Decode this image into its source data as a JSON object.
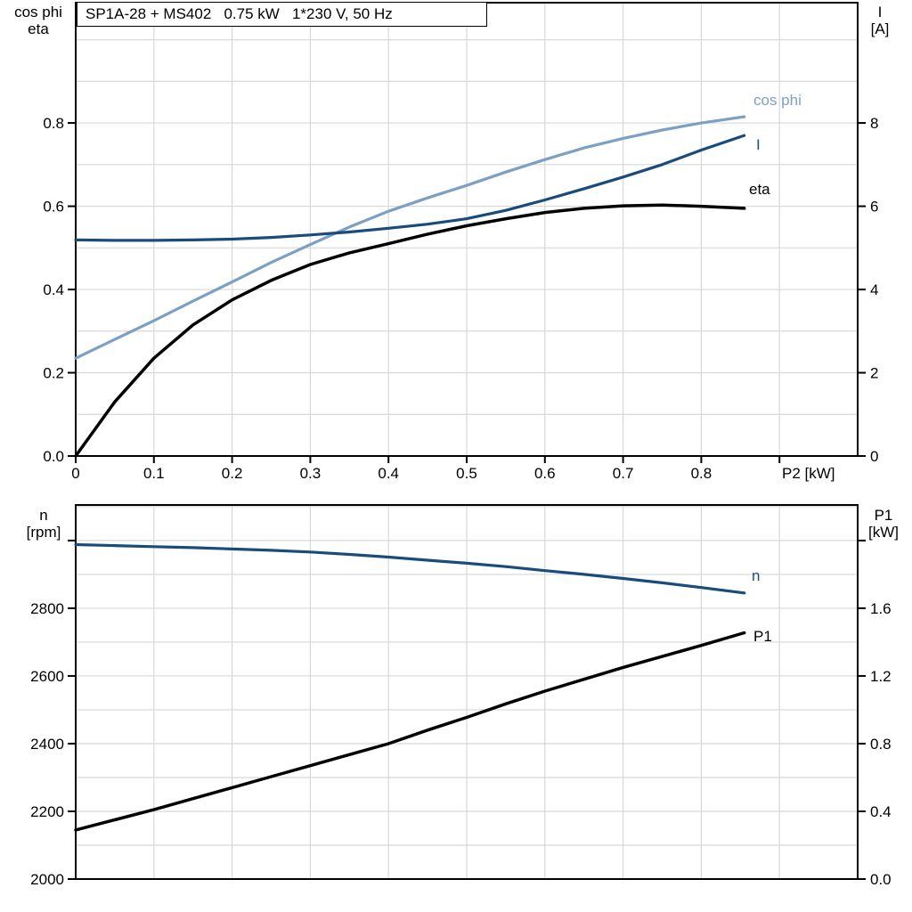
{
  "header": {
    "title_box": "SP1A-28 + MS402   0.75 kW   1*230 V, 50 Hz"
  },
  "colors": {
    "cos_phi": "#7CA0C4",
    "current": "#1A4B7D",
    "eta": "#000000",
    "n": "#1A4B7D",
    "p1": "#000000",
    "grid": "#D8D8D8",
    "axis": "#000000"
  },
  "axis_titles": {
    "top_left_line1": "cos phi",
    "top_left_line2": "eta",
    "top_right_line1": "I",
    "top_right_line2": "[A]",
    "bottom_left_line1": "n",
    "bottom_left_line2": "[rpm]",
    "bottom_right_line1": "P1",
    "bottom_right_line2": "[kW]",
    "x_label": "P2 [kW]"
  },
  "legends": {
    "cos_phi": "cos phi",
    "current": "I",
    "eta": "eta",
    "n": "n",
    "p1": "P1"
  },
  "chart_data": [
    {
      "id": "top",
      "type": "line",
      "title": "SP1A-28 + MS402   0.75 kW   1*230 V, 50 Hz",
      "x_axis": {
        "label": "P2 [kW]",
        "min": 0,
        "max": 1.0,
        "grid_step": 0.1,
        "ticks": [
          {
            "v": 0,
            "label": "0"
          },
          {
            "v": 0.1,
            "label": "0.1"
          },
          {
            "v": 0.2,
            "label": "0.2"
          },
          {
            "v": 0.3,
            "label": "0.3"
          },
          {
            "v": 0.4,
            "label": "0.4"
          },
          {
            "v": 0.5,
            "label": "0.5"
          },
          {
            "v": 0.6,
            "label": "0.6"
          },
          {
            "v": 0.7,
            "label": "0.7"
          },
          {
            "v": 0.8,
            "label": "0.8"
          },
          {
            "v": 0.9,
            "label": ""
          }
        ]
      },
      "left_axis": {
        "label": "cos phi / eta",
        "min": 0,
        "max": 1.089,
        "grid_step": 0.1,
        "ticks": [
          {
            "v": 0.0,
            "label": "0.0"
          },
          {
            "v": 0.2,
            "label": "0.2"
          },
          {
            "v": 0.4,
            "label": "0.4"
          },
          {
            "v": 0.6,
            "label": "0.6"
          },
          {
            "v": 0.8,
            "label": "0.8"
          }
        ]
      },
      "right_axis": {
        "label": "I [A]",
        "min": 0,
        "max": 10.89,
        "ticks": [
          {
            "v": 0,
            "label": "0"
          },
          {
            "v": 2,
            "label": "2"
          },
          {
            "v": 4,
            "label": "4"
          },
          {
            "v": 6,
            "label": "6"
          },
          {
            "v": 8,
            "label": "8"
          }
        ]
      },
      "x": [
        0,
        0.05,
        0.1,
        0.15,
        0.2,
        0.25,
        0.3,
        0.35,
        0.4,
        0.45,
        0.5,
        0.55,
        0.6,
        0.65,
        0.7,
        0.75,
        0.8,
        0.855
      ],
      "series": [
        {
          "name": "cos phi",
          "axis": "left",
          "color": "cos_phi",
          "width": 3.2,
          "values": [
            0.235,
            0.28,
            0.325,
            0.372,
            0.418,
            0.465,
            0.508,
            0.55,
            0.588,
            0.62,
            0.65,
            0.682,
            0.712,
            0.74,
            0.763,
            0.783,
            0.8,
            0.815
          ]
        },
        {
          "name": "I",
          "axis": "right",
          "color": "current",
          "width": 3.2,
          "values": [
            5.19,
            5.18,
            5.18,
            5.19,
            5.21,
            5.25,
            5.31,
            5.38,
            5.47,
            5.57,
            5.7,
            5.9,
            6.15,
            6.42,
            6.7,
            7.0,
            7.35,
            7.7
          ]
        },
        {
          "name": "eta",
          "axis": "left",
          "color": "eta",
          "width": 3.5,
          "values": [
            0.0,
            0.13,
            0.235,
            0.315,
            0.375,
            0.422,
            0.46,
            0.488,
            0.51,
            0.533,
            0.553,
            0.57,
            0.585,
            0.595,
            0.601,
            0.603,
            0.6,
            0.595
          ]
        }
      ]
    },
    {
      "id": "bottom",
      "type": "line",
      "x_axis": {
        "label": "",
        "min": 0,
        "max": 1.0,
        "grid_step": 0.1,
        "ticks": []
      },
      "left_axis": {
        "label": "n [rpm]",
        "min": 2000,
        "max": 3105,
        "grid_step": 100,
        "ticks": [
          {
            "v": 2000,
            "label": "2000"
          },
          {
            "v": 2200,
            "label": "2200"
          },
          {
            "v": 2400,
            "label": "2400"
          },
          {
            "v": 2600,
            "label": "2600"
          },
          {
            "v": 2800,
            "label": "2800"
          },
          {
            "v": 3000,
            "label": ""
          }
        ]
      },
      "right_axis": {
        "label": "P1 [kW]",
        "min": 0,
        "max": 2.21,
        "ticks": [
          {
            "v": 0.0,
            "label": "0.0"
          },
          {
            "v": 0.4,
            "label": "0.4"
          },
          {
            "v": 0.8,
            "label": "0.8"
          },
          {
            "v": 1.2,
            "label": "1.2"
          },
          {
            "v": 1.6,
            "label": "1.6"
          },
          {
            "v": 2.0,
            "label": ""
          }
        ]
      },
      "x": [
        0,
        0.05,
        0.1,
        0.15,
        0.2,
        0.25,
        0.3,
        0.35,
        0.4,
        0.45,
        0.5,
        0.55,
        0.6,
        0.65,
        0.7,
        0.75,
        0.8,
        0.855
      ],
      "series": [
        {
          "name": "n",
          "axis": "left",
          "color": "n",
          "width": 3.2,
          "values": [
            2988,
            2985,
            2982,
            2979,
            2975,
            2971,
            2966,
            2959,
            2951,
            2942,
            2933,
            2923,
            2911,
            2900,
            2888,
            2875,
            2861,
            2845
          ]
        },
        {
          "name": "P1",
          "axis": "right",
          "color": "p1",
          "width": 3.5,
          "values": [
            0.29,
            0.35,
            0.41,
            0.475,
            0.54,
            0.605,
            0.67,
            0.735,
            0.8,
            0.88,
            0.955,
            1.035,
            1.11,
            1.18,
            1.25,
            1.315,
            1.38,
            1.455
          ]
        }
      ]
    }
  ]
}
